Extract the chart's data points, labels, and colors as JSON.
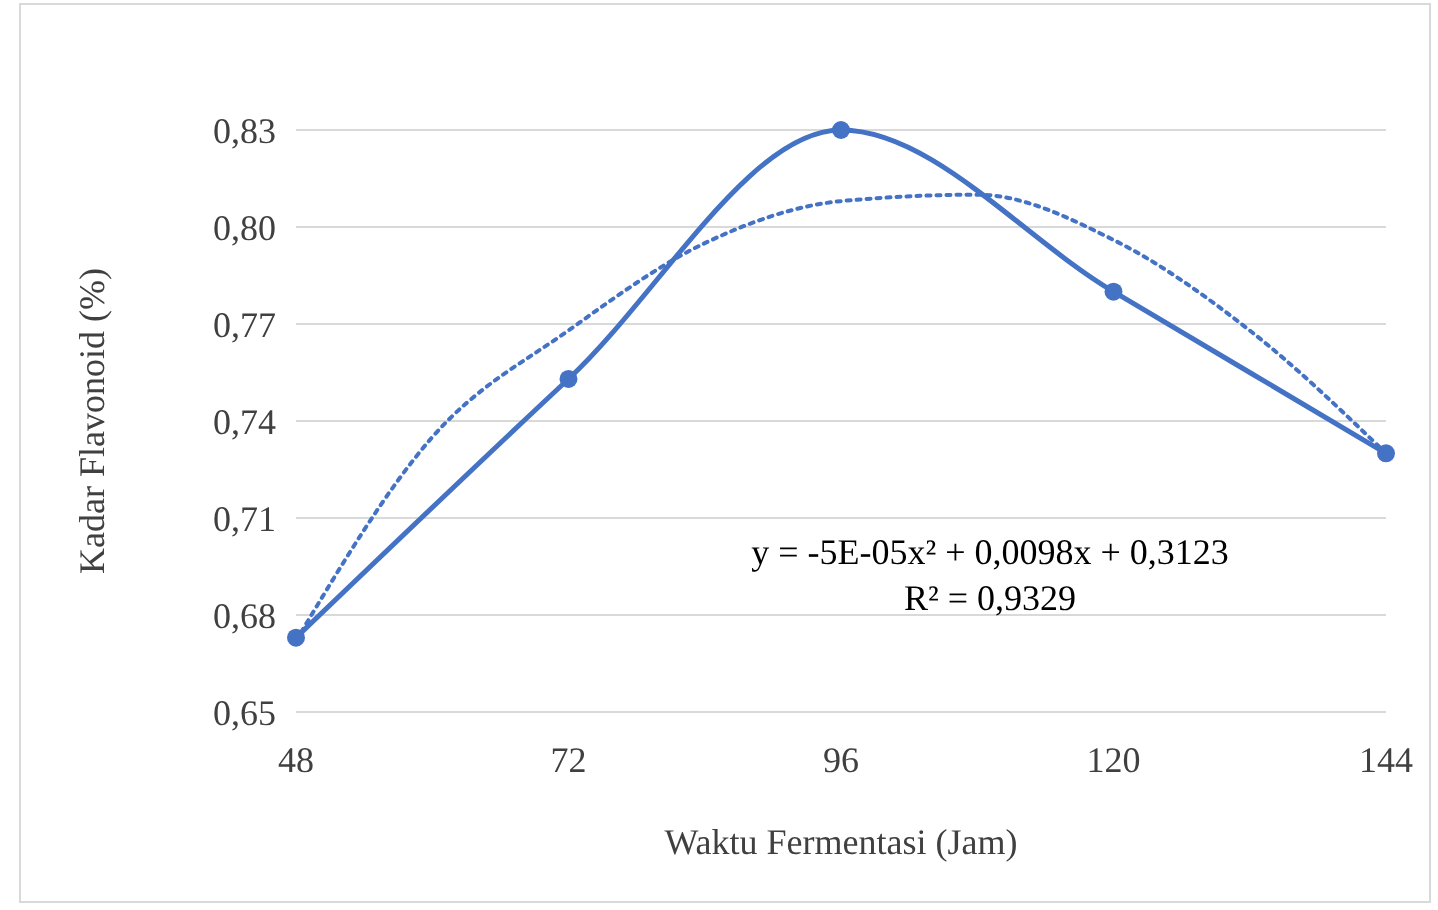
{
  "chart_data": {
    "type": "line",
    "xlabel": "Waktu Fermentasi (Jam)",
    "ylabel": "Kadar Flavonoid (%)",
    "x": [
      48,
      72,
      96,
      120,
      144
    ],
    "series": [
      {
        "color": "#4472c4",
        "values": [
          0.673,
          0.753,
          0.83,
          0.78,
          0.73
        ],
        "marker": "circle",
        "line_style": "solid"
      },
      {
        "type": "line",
        "color": "#4472c4",
        "x": [
          48,
          60,
          72,
          84,
          96,
          108,
          120,
          132,
          144
        ],
        "values": [
          0.672,
          0.735,
          0.768,
          0.795,
          0.808,
          0.81,
          0.796,
          0.768,
          0.73
        ],
        "marker": "none",
        "line_style": "dotted"
      }
    ],
    "xlim": [
      48,
      144
    ],
    "xticks": [
      48,
      72,
      96,
      120,
      144
    ],
    "ylim": [
      0.65,
      0.83
    ],
    "yticks": [
      {
        "value": 0.65,
        "label": "0,65"
      },
      {
        "value": 0.68,
        "label": "0,68"
      },
      {
        "value": 0.71,
        "label": "0,71"
      },
      {
        "value": 0.74,
        "label": "0,74"
      },
      {
        "value": 0.77,
        "label": "0,77"
      },
      {
        "value": 0.8,
        "label": "0,80"
      },
      {
        "value": 0.83,
        "label": "0,83"
      }
    ],
    "grid": "y",
    "annotations": [
      "y = -5E-05x² + 0,0098x + 0,3123",
      "R² = 0,9329"
    ]
  }
}
